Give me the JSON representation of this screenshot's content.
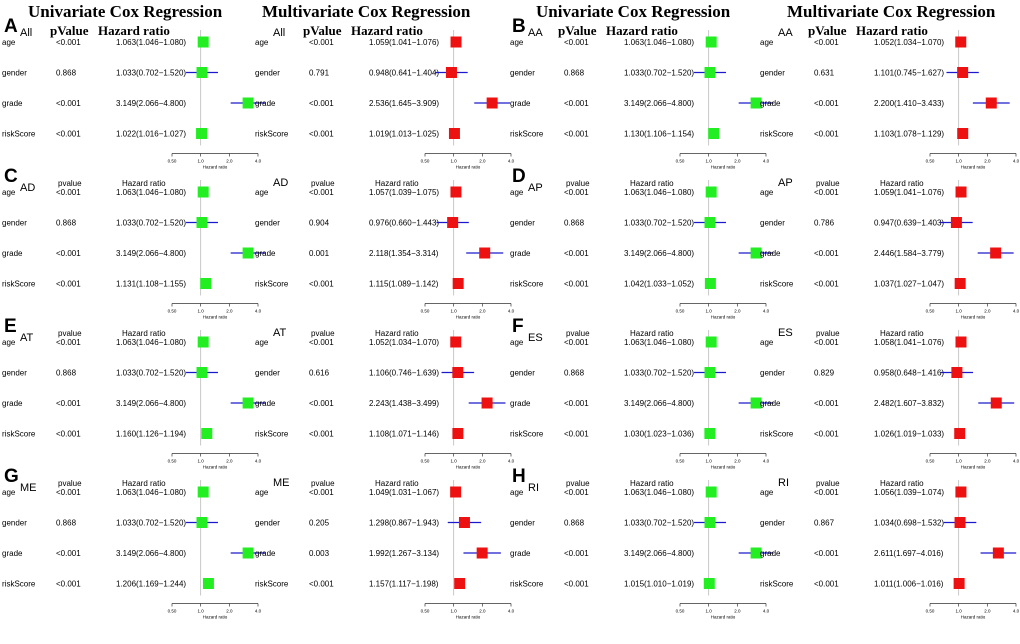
{
  "headings": {
    "uni": "Univariate Cox Regression",
    "multi": "Multivariate Cox Regression"
  },
  "colors": {
    "uni_marker": "#22ee22",
    "multi_marker": "#ee1111",
    "ci_line": "#1a1acc",
    "ref_line": "#bbbbbb"
  },
  "chart_data": [
    {
      "panel": "A",
      "subset": "All",
      "type": "forest",
      "model": "univariate",
      "col_p": "pValue",
      "col_hr": "Hazard ratio",
      "axis_label": "Hazard ratio",
      "xlim": [
        0.5,
        4.0
      ],
      "ticks": [
        "0.50",
        "1.0",
        "2.0",
        "4.0"
      ],
      "rows": [
        {
          "var": "age",
          "p": "<0.001",
          "hr_text": "1.063(1.046−1.080)",
          "hr": 1.063,
          "lo": 1.046,
          "hi": 1.08
        },
        {
          "var": "gender",
          "p": "0.868",
          "hr_text": "1.033(0.702−1.520)",
          "hr": 1.033,
          "lo": 0.702,
          "hi": 1.52
        },
        {
          "var": "grade",
          "p": "<0.001",
          "hr_text": "3.149(2.066−4.800)",
          "hr": 3.149,
          "lo": 2.066,
          "hi": 4.8
        },
        {
          "var": "riskScore",
          "p": "<0.001",
          "hr_text": "1.022(1.016−1.027)",
          "hr": 1.022,
          "lo": 1.016,
          "hi": 1.027
        }
      ]
    },
    {
      "subset": "All",
      "type": "forest",
      "model": "multivariate",
      "col_p": "pValue",
      "col_hr": "Hazard ratio",
      "axis_label": "Hazard ratio",
      "xlim": [
        0.5,
        4.0
      ],
      "ticks": [
        "0.50",
        "1.0",
        "2.0",
        "4.0"
      ],
      "rows": [
        {
          "var": "age",
          "p": "<0.001",
          "hr_text": "1.059(1.041−1.076)",
          "hr": 1.059,
          "lo": 1.041,
          "hi": 1.076
        },
        {
          "var": "gender",
          "p": "0.791",
          "hr_text": "0.948(0.641−1.404)",
          "hr": 0.948,
          "lo": 0.641,
          "hi": 1.404
        },
        {
          "var": "grade",
          "p": "<0.001",
          "hr_text": "2.536(1.645−3.909)",
          "hr": 2.536,
          "lo": 1.645,
          "hi": 3.909
        },
        {
          "var": "riskScore",
          "p": "<0.001",
          "hr_text": "1.019(1.013−1.025)",
          "hr": 1.019,
          "lo": 1.013,
          "hi": 1.025
        }
      ]
    },
    {
      "panel": "B",
      "subset": "AA",
      "type": "forest",
      "model": "univariate",
      "col_p": "pValue",
      "col_hr": "Hazard ratio",
      "axis_label": "Hazard ratio",
      "xlim": [
        0.5,
        4.0
      ],
      "ticks": [
        "0.50",
        "1.0",
        "2.0",
        "4.0"
      ],
      "rows": [
        {
          "var": "age",
          "p": "<0.001",
          "hr_text": "1.063(1.046−1.080)",
          "hr": 1.063,
          "lo": 1.046,
          "hi": 1.08
        },
        {
          "var": "gender",
          "p": "0.868",
          "hr_text": "1.033(0.702−1.520)",
          "hr": 1.033,
          "lo": 0.702,
          "hi": 1.52
        },
        {
          "var": "grade",
          "p": "<0.001",
          "hr_text": "3.149(2.066−4.800)",
          "hr": 3.149,
          "lo": 2.066,
          "hi": 4.8
        },
        {
          "var": "riskScore",
          "p": "<0.001",
          "hr_text": "1.130(1.106−1.154)",
          "hr": 1.13,
          "lo": 1.106,
          "hi": 1.154
        }
      ]
    },
    {
      "subset": "AA",
      "type": "forest",
      "model": "multivariate",
      "col_p": "pValue",
      "col_hr": "Hazard ratio",
      "axis_label": "Hazard ratio",
      "xlim": [
        0.5,
        4.0
      ],
      "ticks": [
        "0.50",
        "1.0",
        "2.0",
        "4.0"
      ],
      "rows": [
        {
          "var": "age",
          "p": "<0.001",
          "hr_text": "1.052(1.034−1.070)",
          "hr": 1.052,
          "lo": 1.034,
          "hi": 1.07
        },
        {
          "var": "gender",
          "p": "0.631",
          "hr_text": "1.101(0.745−1.627)",
          "hr": 1.101,
          "lo": 0.745,
          "hi": 1.627
        },
        {
          "var": "grade",
          "p": "<0.001",
          "hr_text": "2.200(1.410−3.433)",
          "hr": 2.2,
          "lo": 1.41,
          "hi": 3.433
        },
        {
          "var": "riskScore",
          "p": "<0.001",
          "hr_text": "1.103(1.078−1.129)",
          "hr": 1.103,
          "lo": 1.078,
          "hi": 1.129
        }
      ]
    },
    {
      "panel": "C",
      "subset": "AD",
      "type": "forest",
      "model": "univariate",
      "col_p": "pvalue",
      "col_hr": "Hazard ratio",
      "axis_label": "Hazard ratio",
      "xlim": [
        0.5,
        4.0
      ],
      "ticks": [
        "0.50",
        "1.0",
        "2.0",
        "4.0"
      ],
      "rows": [
        {
          "var": "age",
          "p": "<0.001",
          "hr_text": "1.063(1.046−1.080)",
          "hr": 1.063,
          "lo": 1.046,
          "hi": 1.08
        },
        {
          "var": "gender",
          "p": "0.868",
          "hr_text": "1.033(0.702−1.520)",
          "hr": 1.033,
          "lo": 0.702,
          "hi": 1.52
        },
        {
          "var": "grade",
          "p": "<0.001",
          "hr_text": "3.149(2.066−4.800)",
          "hr": 3.149,
          "lo": 2.066,
          "hi": 4.8
        },
        {
          "var": "riskScore",
          "p": "<0.001",
          "hr_text": "1.131(1.108−1.155)",
          "hr": 1.131,
          "lo": 1.108,
          "hi": 1.155
        }
      ]
    },
    {
      "subset": "AD",
      "type": "forest",
      "model": "multivariate",
      "col_p": "pvalue",
      "col_hr": "Hazard ratio",
      "axis_label": "Hazard ratio",
      "xlim": [
        0.5,
        4.0
      ],
      "ticks": [
        "0.50",
        "1.0",
        "2.0",
        "4.0"
      ],
      "rows": [
        {
          "var": "age",
          "p": "<0.001",
          "hr_text": "1.057(1.039−1.075)",
          "hr": 1.057,
          "lo": 1.039,
          "hi": 1.075
        },
        {
          "var": "gender",
          "p": "0.904",
          "hr_text": "0.976(0.660−1.443)",
          "hr": 0.976,
          "lo": 0.66,
          "hi": 1.443
        },
        {
          "var": "grade",
          "p": "0.001",
          "hr_text": "2.118(1.354−3.314)",
          "hr": 2.118,
          "lo": 1.354,
          "hi": 3.314
        },
        {
          "var": "riskScore",
          "p": "<0.001",
          "hr_text": "1.115(1.089−1.142)",
          "hr": 1.115,
          "lo": 1.089,
          "hi": 1.142
        }
      ]
    },
    {
      "panel": "D",
      "subset": "AP",
      "type": "forest",
      "model": "univariate",
      "col_p": "pvalue",
      "col_hr": "Hazard ratio",
      "axis_label": "Hazard ratio",
      "xlim": [
        0.5,
        4.0
      ],
      "ticks": [
        "0.50",
        "1.0",
        "2.0",
        "4.0"
      ],
      "rows": [
        {
          "var": "age",
          "p": "<0.001",
          "hr_text": "1.063(1.046−1.080)",
          "hr": 1.063,
          "lo": 1.046,
          "hi": 1.08
        },
        {
          "var": "gender",
          "p": "0.868",
          "hr_text": "1.033(0.702−1.520)",
          "hr": 1.033,
          "lo": 0.702,
          "hi": 1.52
        },
        {
          "var": "grade",
          "p": "<0.001",
          "hr_text": "3.149(2.066−4.800)",
          "hr": 3.149,
          "lo": 2.066,
          "hi": 4.8
        },
        {
          "var": "riskScore",
          "p": "<0.001",
          "hr_text": "1.042(1.033−1.052)",
          "hr": 1.042,
          "lo": 1.033,
          "hi": 1.052
        }
      ]
    },
    {
      "subset": "AP",
      "type": "forest",
      "model": "multivariate",
      "col_p": "pvalue",
      "col_hr": "Hazard ratio",
      "axis_label": "Hazard ratio",
      "xlim": [
        0.5,
        4.0
      ],
      "ticks": [
        "0.50",
        "1.0",
        "2.0",
        "4.0"
      ],
      "rows": [
        {
          "var": "age",
          "p": "<0.001",
          "hr_text": "1.059(1.041−1.076)",
          "hr": 1.059,
          "lo": 1.041,
          "hi": 1.076
        },
        {
          "var": "gender",
          "p": "0.786",
          "hr_text": "0.947(0.639−1.403)",
          "hr": 0.947,
          "lo": 0.639,
          "hi": 1.403
        },
        {
          "var": "grade",
          "p": "<0.001",
          "hr_text": "2.446(1.584−3.779)",
          "hr": 2.446,
          "lo": 1.584,
          "hi": 3.779
        },
        {
          "var": "riskScore",
          "p": "<0.001",
          "hr_text": "1.037(1.027−1.047)",
          "hr": 1.037,
          "lo": 1.027,
          "hi": 1.047
        }
      ]
    },
    {
      "panel": "E",
      "subset": "AT",
      "type": "forest",
      "model": "univariate",
      "col_p": "pvalue",
      "col_hr": "Hazard ratio",
      "axis_label": "Hazard ratio",
      "xlim": [
        0.5,
        4.0
      ],
      "ticks": [
        "0.50",
        "1.0",
        "2.0",
        "4.0"
      ],
      "rows": [
        {
          "var": "age",
          "p": "<0.001",
          "hr_text": "1.063(1.046−1.080)",
          "hr": 1.063,
          "lo": 1.046,
          "hi": 1.08
        },
        {
          "var": "gender",
          "p": "0.868",
          "hr_text": "1.033(0.702−1.520)",
          "hr": 1.033,
          "lo": 0.702,
          "hi": 1.52
        },
        {
          "var": "grade",
          "p": "<0.001",
          "hr_text": "3.149(2.066−4.800)",
          "hr": 3.149,
          "lo": 2.066,
          "hi": 4.8
        },
        {
          "var": "riskScore",
          "p": "<0.001",
          "hr_text": "1.160(1.126−1.194)",
          "hr": 1.16,
          "lo": 1.126,
          "hi": 1.194
        }
      ]
    },
    {
      "subset": "AT",
      "type": "forest",
      "model": "multivariate",
      "col_p": "pvalue",
      "col_hr": "Hazard ratio",
      "axis_label": "Hazard ratio",
      "xlim": [
        0.5,
        4.0
      ],
      "ticks": [
        "0.50",
        "1.0",
        "2.0",
        "4.0"
      ],
      "rows": [
        {
          "var": "age",
          "p": "<0.001",
          "hr_text": "1.052(1.034−1.070)",
          "hr": 1.052,
          "lo": 1.034,
          "hi": 1.07
        },
        {
          "var": "gender",
          "p": "0.616",
          "hr_text": "1.106(0.746−1.639)",
          "hr": 1.106,
          "lo": 0.746,
          "hi": 1.639
        },
        {
          "var": "grade",
          "p": "<0.001",
          "hr_text": "2.243(1.438−3.499)",
          "hr": 2.243,
          "lo": 1.438,
          "hi": 3.499
        },
        {
          "var": "riskScore",
          "p": "<0.001",
          "hr_text": "1.108(1.071−1.146)",
          "hr": 1.108,
          "lo": 1.071,
          "hi": 1.146
        }
      ]
    },
    {
      "panel": "F",
      "subset": "ES",
      "type": "forest",
      "model": "univariate",
      "col_p": "pvalue",
      "col_hr": "Hazard ratio",
      "axis_label": "Hazard ratio",
      "xlim": [
        0.5,
        4.0
      ],
      "ticks": [
        "0.50",
        "1.0",
        "2.0",
        "4.0"
      ],
      "rows": [
        {
          "var": "age",
          "p": "<0.001",
          "hr_text": "1.063(1.046−1.080)",
          "hr": 1.063,
          "lo": 1.046,
          "hi": 1.08
        },
        {
          "var": "gender",
          "p": "0.868",
          "hr_text": "1.033(0.702−1.520)",
          "hr": 1.033,
          "lo": 0.702,
          "hi": 1.52
        },
        {
          "var": "grade",
          "p": "<0.001",
          "hr_text": "3.149(2.066−4.800)",
          "hr": 3.149,
          "lo": 2.066,
          "hi": 4.8
        },
        {
          "var": "riskScore",
          "p": "<0.001",
          "hr_text": "1.030(1.023−1.036)",
          "hr": 1.03,
          "lo": 1.023,
          "hi": 1.036
        }
      ]
    },
    {
      "subset": "ES",
      "type": "forest",
      "model": "multivariate",
      "col_p": "pvalue",
      "col_hr": "Hazard ratio",
      "axis_label": "Hazard ratio",
      "xlim": [
        0.5,
        4.0
      ],
      "ticks": [
        "0.50",
        "1.0",
        "2.0",
        "4.0"
      ],
      "rows": [
        {
          "var": "age",
          "p": "<0.001",
          "hr_text": "1.058(1.041−1.076)",
          "hr": 1.058,
          "lo": 1.041,
          "hi": 1.076
        },
        {
          "var": "gender",
          "p": "0.829",
          "hr_text": "0.958(0.648−1.416)",
          "hr": 0.958,
          "lo": 0.648,
          "hi": 1.416
        },
        {
          "var": "grade",
          "p": "<0.001",
          "hr_text": "2.482(1.607−3.832)",
          "hr": 2.482,
          "lo": 1.607,
          "hi": 3.832
        },
        {
          "var": "riskScore",
          "p": "<0.001",
          "hr_text": "1.026(1.019−1.033)",
          "hr": 1.026,
          "lo": 1.019,
          "hi": 1.033
        }
      ]
    },
    {
      "panel": "G",
      "subset": "ME",
      "type": "forest",
      "model": "univariate",
      "col_p": "pvalue",
      "col_hr": "Hazard ratio",
      "axis_label": "Hazard ratio",
      "xlim": [
        0.5,
        4.0
      ],
      "ticks": [
        "0.50",
        "1.0",
        "2.0",
        "4.0"
      ],
      "rows": [
        {
          "var": "age",
          "p": "<0.001",
          "hr_text": "1.063(1.046−1.080)",
          "hr": 1.063,
          "lo": 1.046,
          "hi": 1.08
        },
        {
          "var": "gender",
          "p": "0.868",
          "hr_text": "1.033(0.702−1.520)",
          "hr": 1.033,
          "lo": 0.702,
          "hi": 1.52
        },
        {
          "var": "grade",
          "p": "<0.001",
          "hr_text": "3.149(2.066−4.800)",
          "hr": 3.149,
          "lo": 2.066,
          "hi": 4.8
        },
        {
          "var": "riskScore",
          "p": "<0.001",
          "hr_text": "1.206(1.169−1.244)",
          "hr": 1.206,
          "lo": 1.169,
          "hi": 1.244
        }
      ]
    },
    {
      "subset": "ME",
      "type": "forest",
      "model": "multivariate",
      "col_p": "pvalue",
      "col_hr": "Hazard ratio",
      "axis_label": "Hazard ratio",
      "xlim": [
        0.5,
        4.0
      ],
      "ticks": [
        "0.50",
        "1.0",
        "2.0",
        "4.0"
      ],
      "rows": [
        {
          "var": "age",
          "p": "<0.001",
          "hr_text": "1.049(1.031−1.067)",
          "hr": 1.049,
          "lo": 1.031,
          "hi": 1.067
        },
        {
          "var": "gender",
          "p": "0.205",
          "hr_text": "1.298(0.867−1.943)",
          "hr": 1.298,
          "lo": 0.867,
          "hi": 1.943
        },
        {
          "var": "grade",
          "p": "0.003",
          "hr_text": "1.992(1.267−3.134)",
          "hr": 1.992,
          "lo": 1.267,
          "hi": 3.134
        },
        {
          "var": "riskScore",
          "p": "<0.001",
          "hr_text": "1.157(1.117−1.198)",
          "hr": 1.157,
          "lo": 1.117,
          "hi": 1.198
        }
      ]
    },
    {
      "panel": "H",
      "subset": "RI",
      "type": "forest",
      "model": "univariate",
      "col_p": "pvalue",
      "col_hr": "Hazard ratio",
      "axis_label": "Hazard ratio",
      "xlim": [
        0.5,
        4.0
      ],
      "ticks": [
        "0.50",
        "1.0",
        "2.0",
        "4.0"
      ],
      "rows": [
        {
          "var": "age",
          "p": "<0.001",
          "hr_text": "1.063(1.046−1.080)",
          "hr": 1.063,
          "lo": 1.046,
          "hi": 1.08
        },
        {
          "var": "gender",
          "p": "0.868",
          "hr_text": "1.033(0.702−1.520)",
          "hr": 1.033,
          "lo": 0.702,
          "hi": 1.52
        },
        {
          "var": "grade",
          "p": "<0.001",
          "hr_text": "3.149(2.066−4.800)",
          "hr": 3.149,
          "lo": 2.066,
          "hi": 4.8
        },
        {
          "var": "riskScore",
          "p": "<0.001",
          "hr_text": "1.015(1.010−1.019)",
          "hr": 1.015,
          "lo": 1.01,
          "hi": 1.019
        }
      ]
    },
    {
      "subset": "RI",
      "type": "forest",
      "model": "multivariate",
      "col_p": "pvalue",
      "col_hr": "Hazard ratio",
      "axis_label": "Hazard ratio",
      "xlim": [
        0.5,
        4.0
      ],
      "ticks": [
        "0.50",
        "1.0",
        "2.0",
        "4.0"
      ],
      "rows": [
        {
          "var": "age",
          "p": "<0.001",
          "hr_text": "1.056(1.039−1.074)",
          "hr": 1.056,
          "lo": 1.039,
          "hi": 1.074
        },
        {
          "var": "gender",
          "p": "0.867",
          "hr_text": "1.034(0.698−1.532)",
          "hr": 1.034,
          "lo": 0.698,
          "hi": 1.532
        },
        {
          "var": "grade",
          "p": "<0.001",
          "hr_text": "2.611(1.697−4.016)",
          "hr": 2.611,
          "lo": 1.697,
          "hi": 4.016
        },
        {
          "var": "riskScore",
          "p": "<0.001",
          "hr_text": "1.011(1.006−1.016)",
          "hr": 1.011,
          "lo": 1.006,
          "hi": 1.016
        }
      ]
    }
  ]
}
